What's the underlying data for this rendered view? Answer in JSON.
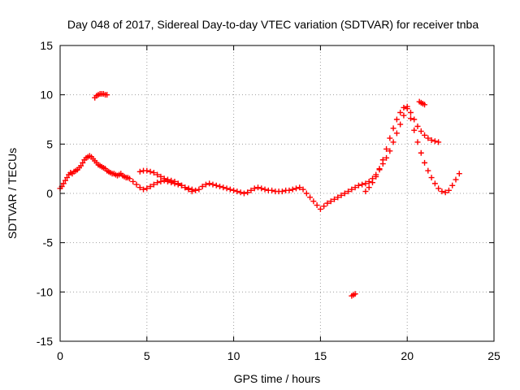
{
  "chart_data": {
    "type": "scatter",
    "title": "Day 048 of 2017, Sidereal Day-to-day VTEC variation (SDTVAR) for receiver tnba",
    "xlabel": "GPS time / hours",
    "ylabel": "SDTVAR / TECUs",
    "xlim": [
      0,
      25
    ],
    "ylim": [
      -15,
      15
    ],
    "x_ticks": [
      0,
      5,
      10,
      15,
      20,
      25
    ],
    "y_ticks": [
      -15,
      -10,
      -5,
      0,
      5,
      10,
      15
    ],
    "grid": true,
    "marker": "plus",
    "color": "#ff0000",
    "series": [
      {
        "name": "main-trace",
        "x": [
          0.0,
          0.1,
          0.2,
          0.3,
          0.4,
          0.5,
          0.6,
          0.7,
          0.8,
          0.9,
          1.0,
          1.1,
          1.2,
          1.3,
          1.4,
          1.5,
          1.6,
          1.7,
          1.8,
          1.9,
          2.0,
          2.1,
          2.2,
          2.3,
          2.4,
          2.5,
          2.6,
          2.7,
          2.8,
          2.9,
          3.0,
          3.1,
          3.2,
          3.3,
          3.4,
          3.5,
          3.6,
          3.7,
          3.8,
          3.9,
          4.0,
          4.2,
          4.4,
          4.6,
          4.8,
          5.0,
          5.2,
          5.4,
          5.6,
          5.8,
          6.0,
          6.2,
          6.4,
          6.6,
          6.8,
          7.0,
          7.2,
          7.4,
          7.6,
          7.8,
          8.0,
          8.2,
          8.4,
          8.6,
          8.8,
          9.0,
          9.2,
          9.4,
          9.6,
          9.8,
          10.0,
          10.2,
          10.4,
          10.6,
          10.8,
          11.0,
          11.2,
          11.4,
          11.6,
          11.8,
          12.0,
          12.2,
          12.4,
          12.6,
          12.8,
          13.0,
          13.2,
          13.4,
          13.6,
          13.8,
          14.0,
          14.2,
          14.4,
          14.6,
          14.8,
          15.0,
          15.2,
          15.4,
          15.6,
          15.8,
          16.0,
          16.2,
          16.4,
          16.6,
          16.8,
          17.0,
          17.2,
          17.4,
          17.6,
          17.8,
          18.0,
          18.2,
          18.4,
          18.6,
          18.8,
          19.0,
          19.2,
          19.4,
          19.6,
          19.8,
          20.0,
          20.2,
          20.4,
          20.6,
          20.8,
          21.0,
          21.2,
          21.4,
          21.6,
          21.8,
          22.0,
          22.2,
          22.4,
          22.6,
          22.8,
          23.0
        ],
        "y": [
          0.5,
          0.7,
          1.0,
          1.3,
          1.6,
          1.9,
          2.1,
          2.0,
          2.2,
          2.3,
          2.4,
          2.6,
          2.8,
          3.1,
          3.4,
          3.6,
          3.7,
          3.8,
          3.7,
          3.5,
          3.3,
          3.1,
          2.9,
          2.8,
          2.7,
          2.6,
          2.5,
          2.3,
          2.2,
          2.1,
          2.0,
          2.0,
          1.9,
          1.8,
          1.9,
          2.0,
          1.8,
          1.7,
          1.6,
          1.6,
          1.5,
          1.2,
          0.9,
          0.6,
          0.4,
          0.5,
          0.7,
          0.9,
          1.1,
          1.2,
          1.3,
          1.2,
          1.1,
          1.0,
          0.9,
          0.8,
          0.6,
          0.5,
          0.4,
          0.3,
          0.4,
          0.7,
          0.9,
          1.0,
          0.9,
          0.8,
          0.7,
          0.6,
          0.5,
          0.4,
          0.3,
          0.2,
          0.1,
          0.0,
          0.1,
          0.3,
          0.5,
          0.6,
          0.5,
          0.4,
          0.3,
          0.3,
          0.2,
          0.2,
          0.2,
          0.3,
          0.3,
          0.4,
          0.5,
          0.6,
          0.4,
          0.0,
          -0.4,
          -0.8,
          -1.2,
          -1.6,
          -1.3,
          -1.0,
          -0.8,
          -0.6,
          -0.4,
          -0.2,
          0.0,
          0.2,
          0.4,
          0.6,
          0.8,
          0.9,
          1.0,
          1.2,
          1.5,
          1.9,
          2.4,
          3.0,
          3.6,
          4.3,
          5.2,
          6.1,
          7.0,
          7.9,
          8.6,
          7.6,
          6.4,
          5.2,
          4.1,
          3.1,
          2.3,
          1.6,
          1.0,
          0.5,
          0.2,
          0.1,
          0.3,
          0.8,
          1.4,
          2.0
        ]
      },
      {
        "name": "upper-branch",
        "x": [
          4.6,
          4.8,
          5.0,
          5.2,
          5.4,
          5.6,
          5.8,
          6.0,
          6.2,
          6.4,
          6.6,
          6.8,
          7.0,
          7.2,
          7.4,
          7.6,
          17.6,
          17.8,
          18.0,
          18.2,
          18.4,
          18.6,
          18.8,
          19.0,
          19.2,
          19.4,
          19.6,
          19.8,
          20.0,
          20.2,
          20.4,
          20.6,
          20.8,
          21.0,
          21.2,
          21.4,
          21.6,
          21.8
        ],
        "y": [
          2.2,
          2.3,
          2.3,
          2.2,
          2.1,
          1.9,
          1.7,
          1.5,
          1.4,
          1.3,
          1.2,
          1.0,
          0.8,
          0.6,
          0.4,
          0.2,
          0.2,
          0.6,
          1.1,
          1.7,
          2.5,
          3.4,
          4.5,
          5.6,
          6.6,
          7.5,
          8.2,
          8.7,
          8.8,
          8.2,
          7.5,
          6.8,
          6.3,
          5.9,
          5.6,
          5.4,
          5.3,
          5.2
        ]
      },
      {
        "name": "isolated-clusters",
        "x": [
          2.0,
          2.1,
          2.2,
          2.3,
          2.4,
          2.5,
          2.6,
          2.7,
          16.8,
          16.9,
          17.0,
          20.7,
          20.8,
          20.9,
          21.0
        ],
        "y": [
          9.7,
          9.9,
          10.0,
          10.1,
          10.1,
          10.1,
          10.0,
          10.0,
          -10.4,
          -10.3,
          -10.2,
          9.3,
          9.2,
          9.1,
          9.0
        ]
      }
    ]
  }
}
